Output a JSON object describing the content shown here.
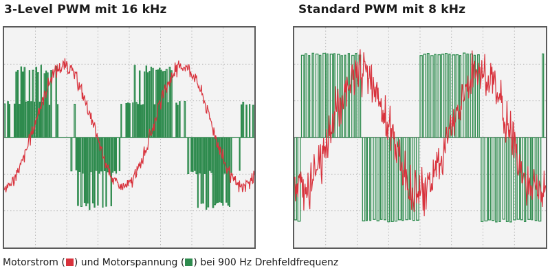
{
  "colors": {
    "current": "#d8323c",
    "voltage": "#2e8b4e",
    "grid": "#a8a8a8",
    "frame": "#5a5a5a",
    "background": "#f3f3f3"
  },
  "caption": {
    "part1": "Motorstrom (",
    "part2": ") und Motorspannung (",
    "part3": ") bei 900 Hz Drehfeldfrequenz"
  },
  "chart_data": [
    {
      "type": "line",
      "title": "3-Level PWM mit 16 kHz",
      "grid": true,
      "grid_divisions": {
        "x": 8,
        "y": 6
      },
      "series": [
        {
          "name": "Motorstrom",
          "color": "#d8323c",
          "kind": "sine-noisy",
          "cycles": 2.1,
          "phase": -0.25,
          "amplitude": 0.55,
          "offset": 0.1,
          "noise": 0.06
        },
        {
          "name": "Motorspannung",
          "color": "#2e8b4e",
          "kind": "pwm-3-level",
          "pulses": 150,
          "levels": [
            -2,
            -1,
            0,
            1,
            2
          ]
        }
      ]
    },
    {
      "type": "line",
      "title": "Standard PWM mit 8 kHz",
      "grid": true,
      "grid_divisions": {
        "x": 8,
        "y": 6
      },
      "series": [
        {
          "name": "Motorstrom",
          "color": "#d8323c",
          "kind": "sine-noisy",
          "cycles": 2.1,
          "phase": -0.3,
          "amplitude": 0.55,
          "offset": 0.05,
          "noise": 0.2
        },
        {
          "name": "Motorspannung",
          "color": "#2e8b4e",
          "kind": "pwm-2-level",
          "pulses": 70,
          "levels": [
            -1,
            0,
            1
          ]
        }
      ]
    }
  ]
}
